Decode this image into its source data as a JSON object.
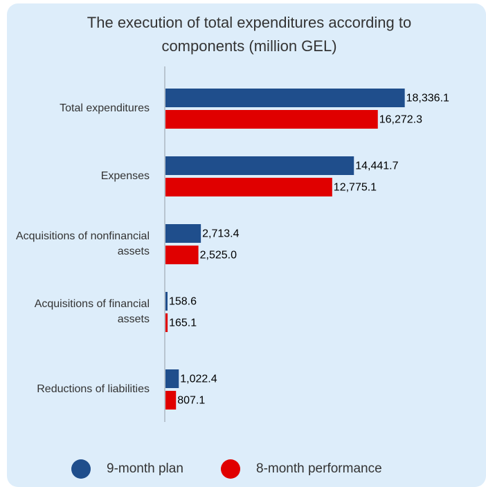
{
  "chart_data": {
    "type": "bar",
    "orientation": "horizontal",
    "title": "The execution of total expenditures according to components (million GEL)",
    "categories": [
      "Total expenditures",
      "Expenses",
      "Acquisitions of nonfinancial assets",
      "Acquisitions of financial assets",
      "Reductions of liabilities"
    ],
    "series": [
      {
        "name": "9-month plan",
        "color": "#1f4e8c",
        "values": [
          18336.1,
          14441.7,
          2713.4,
          158.6,
          1022.4
        ],
        "value_labels": [
          "18,336.1",
          "14,441.7",
          "2,713.4",
          "158.6",
          "1,022.4"
        ]
      },
      {
        "name": "8-month performance",
        "color": "#e00000",
        "values": [
          16272.3,
          12775.1,
          2525.0,
          165.1,
          807.1
        ],
        "value_labels": [
          "16,272.3",
          "12,775.1",
          "2,525.0",
          "165.1",
          "807.1"
        ]
      }
    ],
    "xlim": [
      0,
      20000
    ]
  }
}
